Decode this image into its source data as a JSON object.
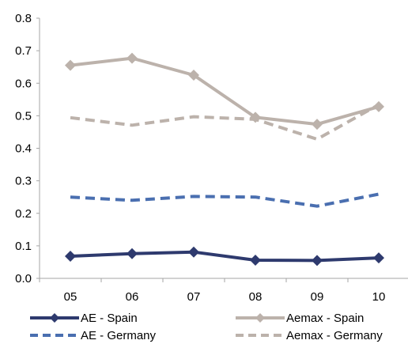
{
  "chart_data": {
    "type": "line",
    "title": "",
    "xlabel": "",
    "ylabel": "",
    "categories": [
      "05",
      "06",
      "07",
      "08",
      "09",
      "10"
    ],
    "ylim": [
      0.0,
      0.8
    ],
    "yticks": [
      "0.0",
      "0.1",
      "0.2",
      "0.3",
      "0.4",
      "0.5",
      "0.6",
      "0.7",
      "0.8"
    ],
    "grid": false,
    "legend_position": "bottom",
    "series": [
      {
        "name": "AE - Spain",
        "values": [
          0.068,
          0.076,
          0.081,
          0.056,
          0.055,
          0.063
        ],
        "color": "#2e3a6e",
        "dash": "solid",
        "marker": "diamond"
      },
      {
        "name": "Aemax - Spain",
        "values": [
          0.655,
          0.677,
          0.625,
          0.495,
          0.474,
          0.528
        ],
        "color": "#bcb2ab",
        "dash": "solid",
        "marker": "diamond"
      },
      {
        "name": "AE - Germany",
        "values": [
          0.25,
          0.24,
          0.252,
          0.25,
          0.222,
          0.259
        ],
        "color": "#4a6fb0",
        "dash": "dashed",
        "marker": "none"
      },
      {
        "name": "Aemax - Germany",
        "values": [
          0.494,
          0.471,
          0.497,
          0.489,
          0.428,
          0.534
        ],
        "color": "#bcb2ab",
        "dash": "dashed",
        "marker": "none"
      }
    ]
  }
}
